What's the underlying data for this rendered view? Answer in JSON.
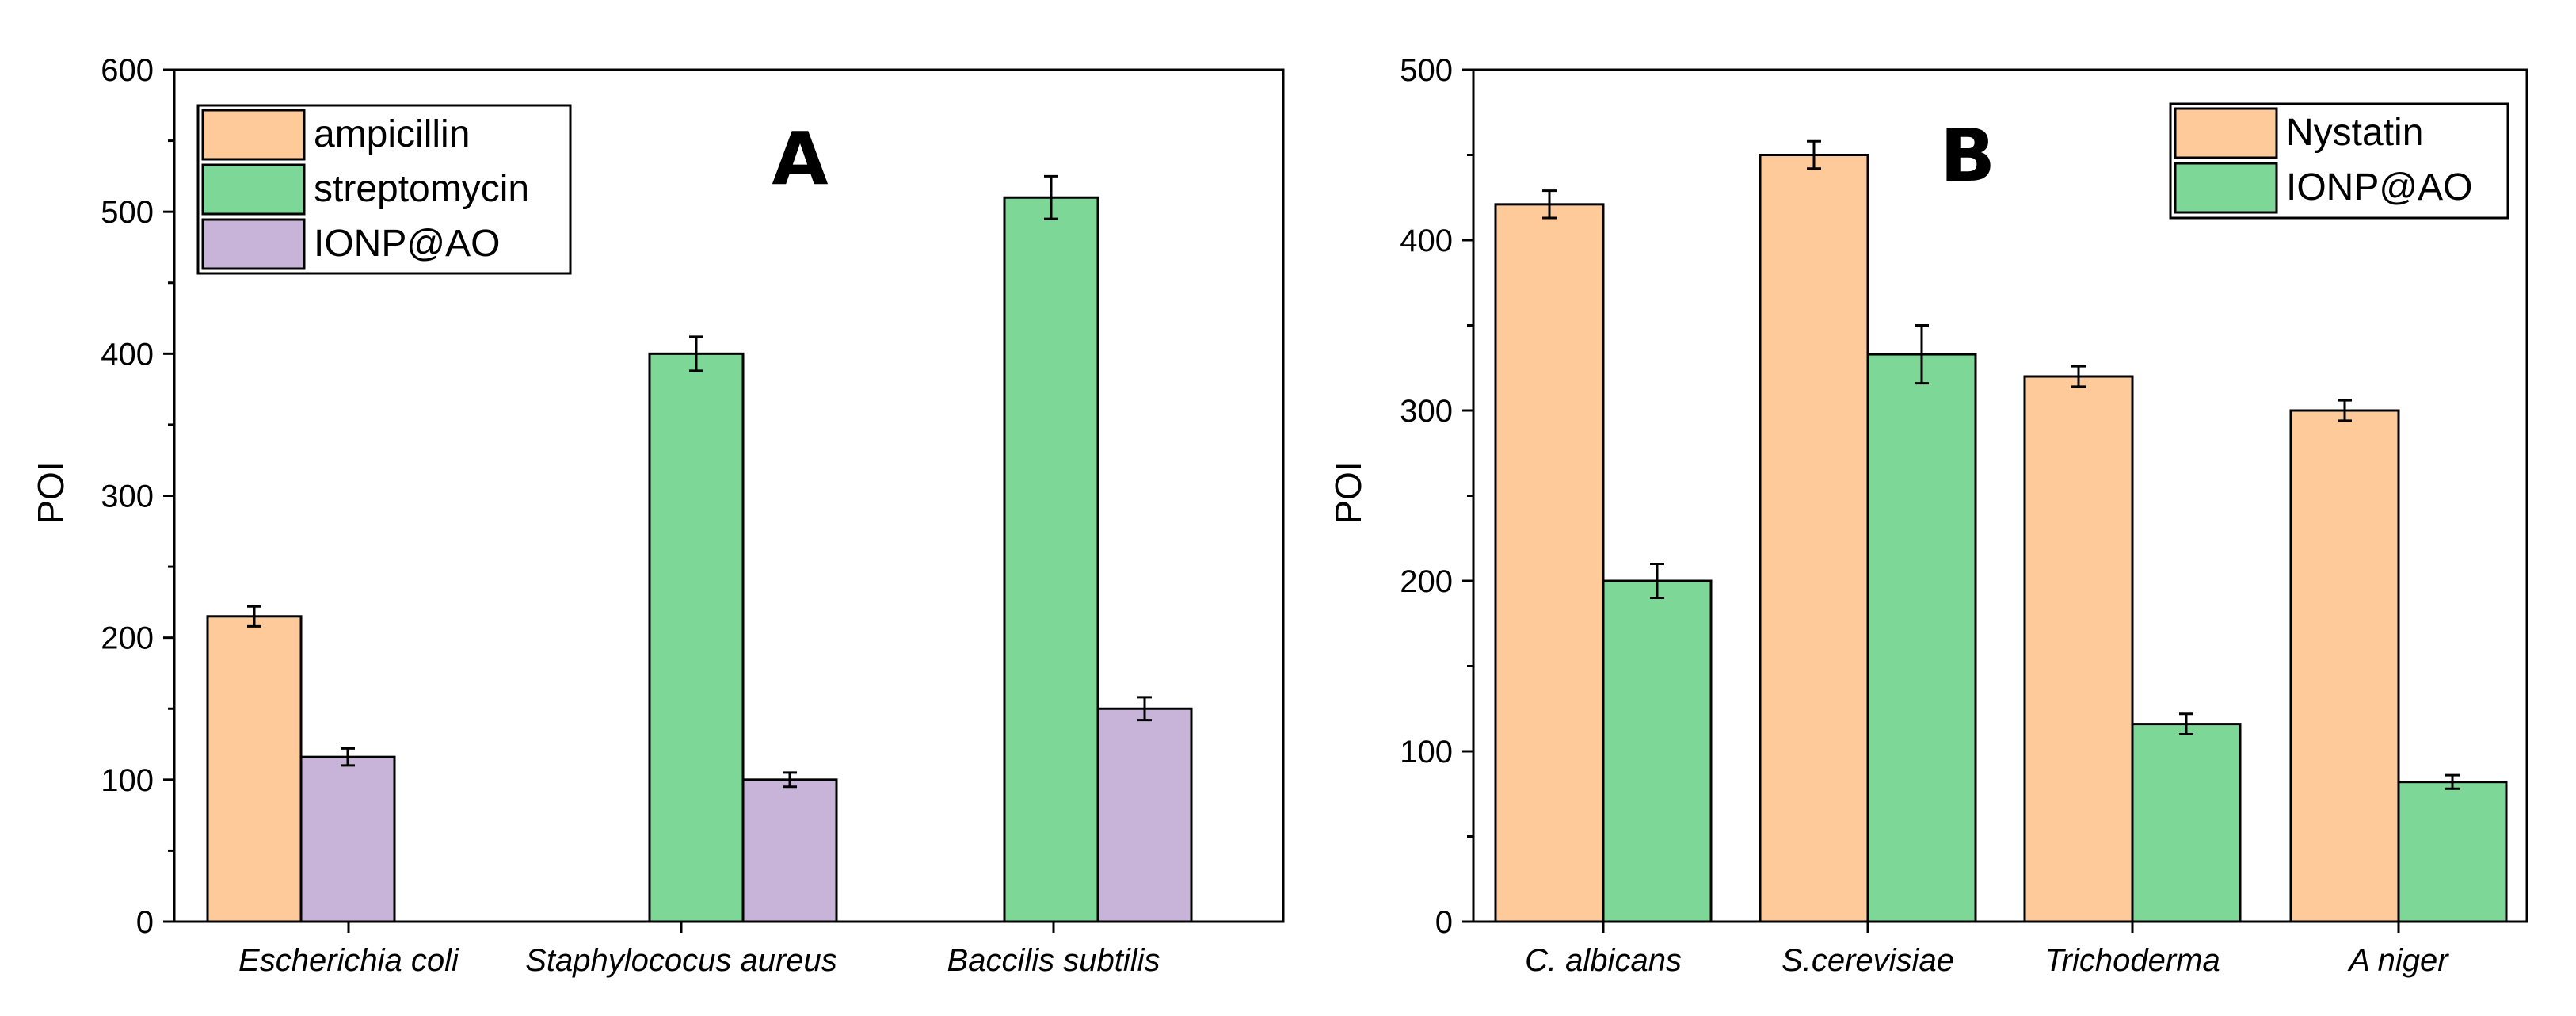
{
  "chart_data": [
    {
      "type": "bar",
      "panel": "A",
      "title": "A",
      "xlabel": "",
      "ylabel": "POI",
      "ylim": [
        0,
        600
      ],
      "yticks": [
        0,
        100,
        200,
        300,
        400,
        500,
        600
      ],
      "grid": false,
      "legend_position": "top-left",
      "categories": [
        "Escherichia coli",
        "Staphylococus aureus",
        "Baccilis subtilis"
      ],
      "series": [
        {
          "name": "ampicillin",
          "color": "#FFCA9A",
          "values": [
            215,
            null,
            null
          ],
          "errors": [
            7,
            null,
            null
          ]
        },
        {
          "name": "streptomycin",
          "color": "#7DD897",
          "values": [
            null,
            400,
            510
          ],
          "errors": [
            null,
            12,
            15
          ]
        },
        {
          "name": "IONP@AO",
          "color": "#C8B4D8",
          "values": [
            116,
            100,
            150
          ],
          "errors": [
            6,
            5,
            8
          ]
        }
      ]
    },
    {
      "type": "bar",
      "panel": "B",
      "title": "B",
      "xlabel": "",
      "ylabel": "POI",
      "ylim": [
        0,
        500
      ],
      "yticks": [
        0,
        100,
        200,
        300,
        400,
        500
      ],
      "grid": false,
      "legend_position": "top-right",
      "categories": [
        "C. albicans",
        "S.cerevisiae",
        "Trichoderma",
        "A niger"
      ],
      "series": [
        {
          "name": "Nystatin",
          "color": "#FFCA9A",
          "values": [
            421,
            450,
            320,
            300
          ],
          "errors": [
            8,
            8,
            6,
            6
          ]
        },
        {
          "name": "IONP@AO",
          "color": "#7DD897",
          "values": [
            200,
            333,
            116,
            82
          ],
          "errors": [
            10,
            17,
            6,
            4
          ]
        }
      ]
    }
  ]
}
